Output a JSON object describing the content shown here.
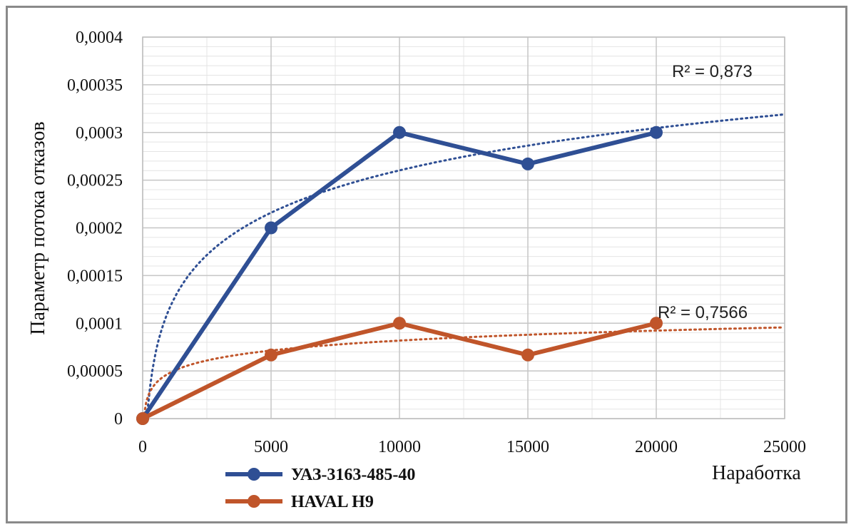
{
  "chart_data": {
    "type": "line",
    "xlabel": "Наработка",
    "ylabel": "Параметр потока отказов",
    "xlim": [
      0,
      25000
    ],
    "ylim": [
      0,
      0.0004
    ],
    "x_ticks": [
      "0",
      "5000",
      "10000",
      "15000",
      "20000",
      "25000"
    ],
    "y_ticks": [
      "0",
      "0,00005",
      "0,0001",
      "0,00015",
      "0,0002",
      "0,00025",
      "0,0003",
      "0,00035",
      "0,0004"
    ],
    "grid": true,
    "legend_position": "bottom-left",
    "x": [
      0,
      5000,
      10000,
      15000,
      20000
    ],
    "series": [
      {
        "name": "УАЗ-3163-485-40",
        "color": "#2f4f94",
        "values": [
          0,
          0.0002,
          0.0003,
          0.000267,
          0.0003
        ],
        "trendline": {
          "style": "dotted",
          "r2_label": "R² = 0,873"
        }
      },
      {
        "name": "HAVAL H9",
        "color": "#c0552a",
        "values": [
          0,
          6.67e-05,
          0.0001,
          6.67e-05,
          0.0001
        ],
        "trendline": {
          "style": "dotted",
          "r2_label": "R² = 0,7566"
        }
      }
    ]
  }
}
